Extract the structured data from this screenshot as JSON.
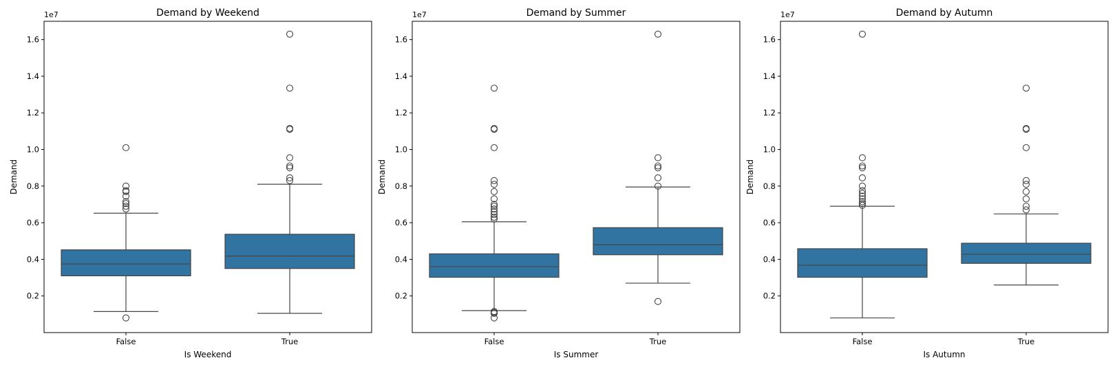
{
  "chart_data": [
    {
      "type": "box",
      "title": "Demand by Weekend",
      "xlabel": "Is Weekend",
      "ylabel": "Demand",
      "offset_label": "1e7",
      "categories": [
        "False",
        "True"
      ],
      "ylim": [
        0.0,
        1.7
      ],
      "yticks": [
        "0.2",
        "0.4",
        "0.6",
        "0.8",
        "1.0",
        "1.2",
        "1.4",
        "1.6"
      ],
      "box_color": "#3274a1",
      "boxes": [
        {
          "category": "False",
          "whisker_low": 0.115,
          "q1": 0.31,
          "median": 0.375,
          "q3": 0.452,
          "whisker_high": 0.652,
          "outliers": [
            0.08,
            0.675,
            0.69,
            0.705,
            0.715,
            0.745,
            0.77,
            0.775,
            0.8,
            1.01
          ]
        },
        {
          "category": "True",
          "whisker_low": 0.105,
          "q1": 0.35,
          "median": 0.418,
          "q3": 0.537,
          "whisker_high": 0.81,
          "outliers": [
            0.83,
            0.845,
            0.9,
            0.91,
            0.955,
            1.11,
            1.115,
            1.335,
            1.63
          ]
        }
      ]
    },
    {
      "type": "box",
      "title": "Demand by Summer",
      "xlabel": "Is Summer",
      "ylabel": "Demand",
      "offset_label": "1e7",
      "categories": [
        "False",
        "True"
      ],
      "ylim": [
        0.0,
        1.7
      ],
      "yticks": [
        "0.2",
        "0.4",
        "0.6",
        "0.8",
        "1.0",
        "1.2",
        "1.4",
        "1.6"
      ],
      "box_color": "#3274a1",
      "boxes": [
        {
          "category": "False",
          "whisker_low": 0.12,
          "q1": 0.302,
          "median": 0.36,
          "q3": 0.43,
          "whisker_high": 0.605,
          "outliers": [
            0.08,
            0.105,
            0.11,
            0.115,
            0.62,
            0.63,
            0.645,
            0.66,
            0.675,
            0.69,
            0.7,
            0.73,
            0.77,
            0.81,
            0.83,
            1.01,
            1.11,
            1.115,
            1.335
          ]
        },
        {
          "category": "True",
          "whisker_low": 0.27,
          "q1": 0.425,
          "median": 0.48,
          "q3": 0.573,
          "whisker_high": 0.795,
          "outliers": [
            0.17,
            0.8,
            0.845,
            0.9,
            0.91,
            0.955,
            1.63
          ]
        }
      ]
    },
    {
      "type": "box",
      "title": "Demand by Autumn",
      "xlabel": "Is Autumn",
      "ylabel": "Demand",
      "offset_label": "1e7",
      "categories": [
        "False",
        "True"
      ],
      "ylim": [
        0.0,
        1.7
      ],
      "yticks": [
        "0.2",
        "0.4",
        "0.6",
        "0.8",
        "1.0",
        "1.2",
        "1.4",
        "1.6"
      ],
      "box_color": "#3274a1",
      "boxes": [
        {
          "category": "False",
          "whisker_low": 0.08,
          "q1": 0.302,
          "median": 0.368,
          "q3": 0.458,
          "whisker_high": 0.69,
          "outliers": [
            0.695,
            0.705,
            0.715,
            0.73,
            0.745,
            0.76,
            0.775,
            0.8,
            0.845,
            0.9,
            0.91,
            0.955,
            1.63
          ]
        },
        {
          "category": "True",
          "whisker_low": 0.26,
          "q1": 0.378,
          "median": 0.428,
          "q3": 0.488,
          "whisker_high": 0.648,
          "outliers": [
            0.67,
            0.69,
            0.73,
            0.77,
            0.81,
            0.83,
            1.01,
            1.11,
            1.115,
            1.335
          ]
        }
      ]
    }
  ]
}
